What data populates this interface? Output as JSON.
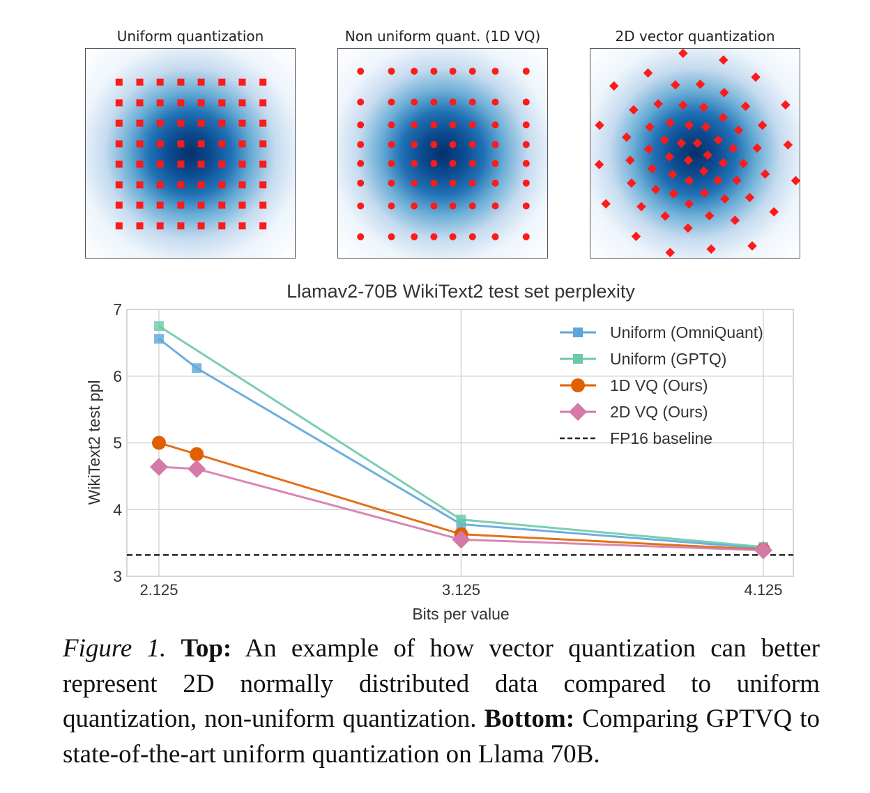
{
  "chart_data": [
    {
      "type": "scatter",
      "title": "Uniform quantization",
      "background": "2D standard normal density (Blues colormap)",
      "marker": "square",
      "marker_color": "#ff1a1a",
      "xlim": [
        -3,
        3
      ],
      "ylim": [
        -3,
        3
      ],
      "grid_x": [
        -2.05,
        -1.46,
        -0.88,
        -0.29,
        0.29,
        0.88,
        1.46,
        2.05
      ],
      "grid_y": [
        -2.05,
        -1.46,
        -0.88,
        -0.29,
        0.29,
        0.88,
        1.46,
        2.05
      ]
    },
    {
      "type": "scatter",
      "title": "Non uniform quant. (1D VQ)",
      "background": "2D standard normal density (Blues colormap)",
      "marker": "circle",
      "marker_color": "#ff1a1a",
      "xlim": [
        -3,
        3
      ],
      "ylim": [
        -3,
        3
      ],
      "grid_x": [
        -2.36,
        -1.48,
        -0.83,
        -0.27,
        0.27,
        0.83,
        1.48,
        2.36
      ],
      "grid_y": [
        -2.36,
        -1.48,
        -0.83,
        -0.27,
        0.27,
        0.83,
        1.48,
        2.36
      ]
    },
    {
      "type": "scatter",
      "title": "2D vector quantization",
      "background": "2D standard normal density (Blues colormap)",
      "marker": "diamond",
      "marker_color": "#ff1a1a",
      "xlim": [
        -3,
        3
      ],
      "ylim": [
        -3,
        3
      ],
      "points": [
        [
          -0.36,
          2.87
        ],
        [
          0.79,
          2.68
        ],
        [
          -1.36,
          2.31
        ],
        [
          1.71,
          2.19
        ],
        [
          -2.33,
          1.94
        ],
        [
          -0.58,
          1.97
        ],
        [
          0.13,
          1.99
        ],
        [
          0.81,
          1.75
        ],
        [
          2.56,
          1.4
        ],
        [
          -1.07,
          1.43
        ],
        [
          -0.36,
          1.39
        ],
        [
          0.23,
          1.33
        ],
        [
          1.42,
          1.36
        ],
        [
          -1.77,
          1.26
        ],
        [
          0.78,
          1.04
        ],
        [
          -2.74,
          0.82
        ],
        [
          -0.73,
          0.89
        ],
        [
          -0.19,
          0.82
        ],
        [
          0.29,
          0.77
        ],
        [
          1.9,
          0.82
        ],
        [
          -1.31,
          0.77
        ],
        [
          1.22,
          0.68
        ],
        [
          -1.97,
          0.48
        ],
        [
          -0.89,
          0.4
        ],
        [
          -0.41,
          0.31
        ],
        [
          0.05,
          0.31
        ],
        [
          0.64,
          0.4
        ],
        [
          2.63,
          0.26
        ],
        [
          1.07,
          0.16
        ],
        [
          1.75,
          0.17
        ],
        [
          -1.34,
          0.14
        ],
        [
          -0.75,
          -0.08
        ],
        [
          -0.21,
          -0.18
        ],
        [
          0.34,
          -0.03
        ],
        [
          0.78,
          -0.25
        ],
        [
          -2.75,
          -0.3
        ],
        [
          -1.87,
          -0.18
        ],
        [
          1.36,
          -0.27
        ],
        [
          -1.24,
          -0.42
        ],
        [
          0.23,
          -0.49
        ],
        [
          -0.66,
          -0.58
        ],
        [
          1.98,
          -0.57
        ],
        [
          -1.83,
          -0.83
        ],
        [
          -0.19,
          -0.76
        ],
        [
          0.63,
          -0.75
        ],
        [
          1.17,
          -0.75
        ],
        [
          2.85,
          -0.76
        ],
        [
          -1.14,
          -1.01
        ],
        [
          -0.63,
          -1.13
        ],
        [
          0.25,
          -1.11
        ],
        [
          0.83,
          -1.28
        ],
        [
          1.54,
          -1.24
        ],
        [
          -2.56,
          -1.42
        ],
        [
          -1.55,
          -1.5
        ],
        [
          -0.19,
          -1.42
        ],
        [
          2.23,
          -1.65
        ],
        [
          -0.87,
          -1.77
        ],
        [
          0.39,
          -1.76
        ],
        [
          1.12,
          -1.89
        ],
        [
          -0.22,
          -2.11
        ],
        [
          -1.7,
          -2.35
        ],
        [
          1.61,
          -2.62
        ],
        [
          0.44,
          -2.71
        ],
        [
          -0.73,
          -2.81
        ]
      ]
    },
    {
      "type": "line",
      "title": "Llamav2-70B WikiText2 test set perplexity",
      "xlabel": "Bits per value",
      "ylabel": "WikiText2 test ppl",
      "xlim": [
        2.0,
        4.22
      ],
      "ylim": [
        3,
        7
      ],
      "xticks": [
        "2.125",
        "3.125",
        "4.125"
      ],
      "yticks": [
        "3",
        "4",
        "5",
        "6",
        "7"
      ],
      "grid": true,
      "legend_position": "top-right",
      "series": [
        {
          "name": "Uniform (OmniQuant)",
          "color": "#5da5da",
          "marker": "square",
          "x": [
            2.125,
            2.25,
            3.125,
            4.125
          ],
          "y": [
            6.56,
            6.12,
            3.78,
            3.42
          ]
        },
        {
          "name": "Uniform (GPTQ)",
          "color": "#6cc9a8",
          "marker": "square",
          "x": [
            2.125,
            3.125,
            4.125
          ],
          "y": [
            6.75,
            3.85,
            3.44
          ]
        },
        {
          "name": "1D VQ (Ours)",
          "color": "#e06000",
          "marker": "circle",
          "x": [
            2.125,
            2.25,
            3.125,
            4.125
          ],
          "y": [
            5.0,
            4.83,
            3.63,
            3.4
          ]
        },
        {
          "name": "2D VQ (Ours)",
          "color": "#d47aa8",
          "marker": "diamond",
          "x": [
            2.125,
            2.25,
            3.125,
            4.125
          ],
          "y": [
            4.64,
            4.61,
            3.55,
            3.39
          ]
        }
      ],
      "baseline": {
        "name": "FP16 baseline",
        "color": "#222222",
        "style": "dashed",
        "y": 3.32
      }
    }
  ],
  "caption": {
    "figure_label": "Figure 1.",
    "top_label": "Top:",
    "top_text": " An example of how vector quantization can better represent 2D normally distributed data compared to uniform quantization, non-uniform quantization. ",
    "bottom_label": "Bottom:",
    "bottom_text": " Comparing GPTVQ to state-of-the-art uniform quantization on Llama 70B."
  }
}
